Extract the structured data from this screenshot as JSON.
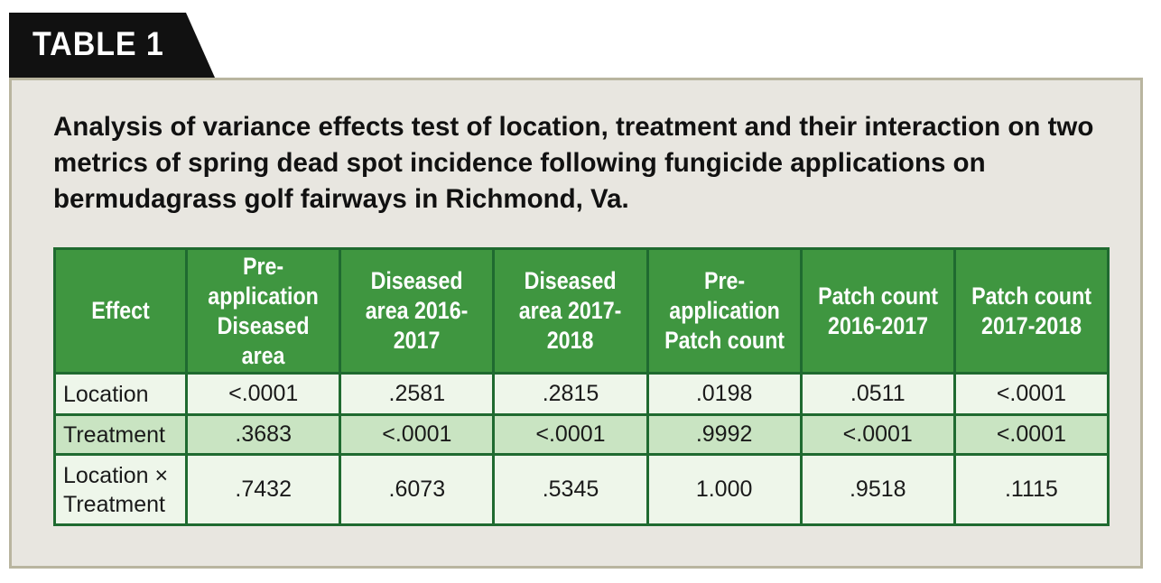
{
  "tab": {
    "label": "TABLE 1"
  },
  "caption": "Analysis of variance effects test of location, treatment and their interaction on two metrics of spring dead spot incidence following fungicide applications on bermudagrass golf fairways in Richmond, Va.",
  "table": {
    "headers": [
      "Effect",
      "Pre-application Diseased area",
      "Diseased area 2016-2017",
      "Diseased area 2017-2018",
      "Pre-application Patch count",
      "Patch count 2016-2017",
      "Patch count 2017-2018"
    ],
    "rows": [
      {
        "effect": "Location",
        "values": [
          "<.0001",
          ".2581",
          ".2815",
          ".0198",
          ".0511",
          "<.0001"
        ]
      },
      {
        "effect": "Treatment",
        "values": [
          ".3683",
          "<.0001",
          "<.0001",
          ".9992",
          "<.0001",
          "<.0001"
        ]
      },
      {
        "effect": "Location × Treatment",
        "values": [
          ".7432",
          ".6073",
          ".5345",
          "1.000",
          ".9518",
          ".1115"
        ]
      }
    ]
  },
  "colors": {
    "header_green": "#3f9640",
    "border_green": "#1f6a30",
    "row_light": "#eef6ea",
    "row_shaded": "#c9e4c2",
    "panel_bg": "#e8e6e0",
    "panel_border": "#b9b59f",
    "tab_bg": "#111111"
  }
}
